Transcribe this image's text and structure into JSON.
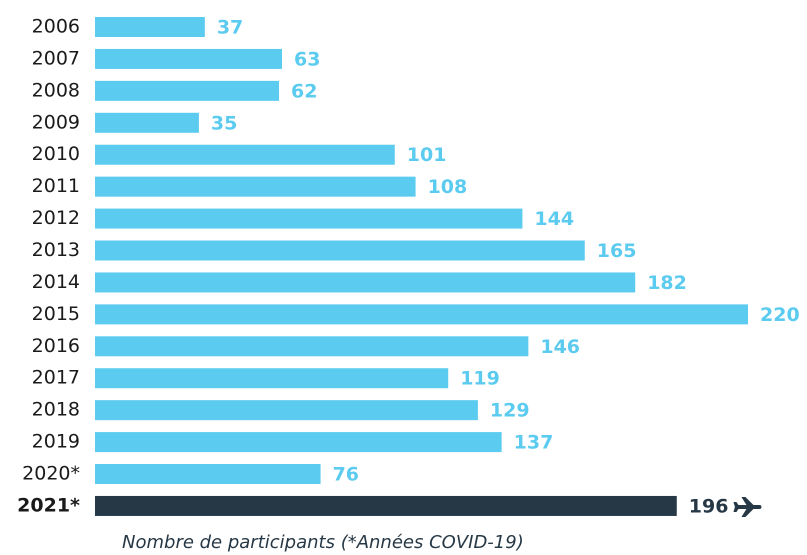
{
  "chart_data": {
    "type": "bar",
    "orientation": "horizontal",
    "caption": "Nombre de participants (*Années COVID-19)",
    "categories": [
      "2006",
      "2007",
      "2008",
      "2009",
      "2010",
      "2011",
      "2012",
      "2013",
      "2014",
      "2015",
      "2016",
      "2017",
      "2018",
      "2019",
      "2020*",
      "2021*"
    ],
    "values": [
      37,
      63,
      62,
      35,
      101,
      108,
      144,
      165,
      182,
      220,
      146,
      119,
      129,
      137,
      76,
      196
    ],
    "color": "#5bcbef",
    "colors": [
      "#5bcbef",
      "#5bcbef",
      "#5bcbef",
      "#5bcbef",
      "#5bcbef",
      "#5bcbef",
      "#5bcbef",
      "#5bcbef",
      "#5bcbef",
      "#5bcbef",
      "#5bcbef",
      "#5bcbef",
      "#5bcbef",
      "#5bcbef",
      "#5bcbef",
      "#263845"
    ],
    "xlim": [
      0,
      220
    ]
  }
}
